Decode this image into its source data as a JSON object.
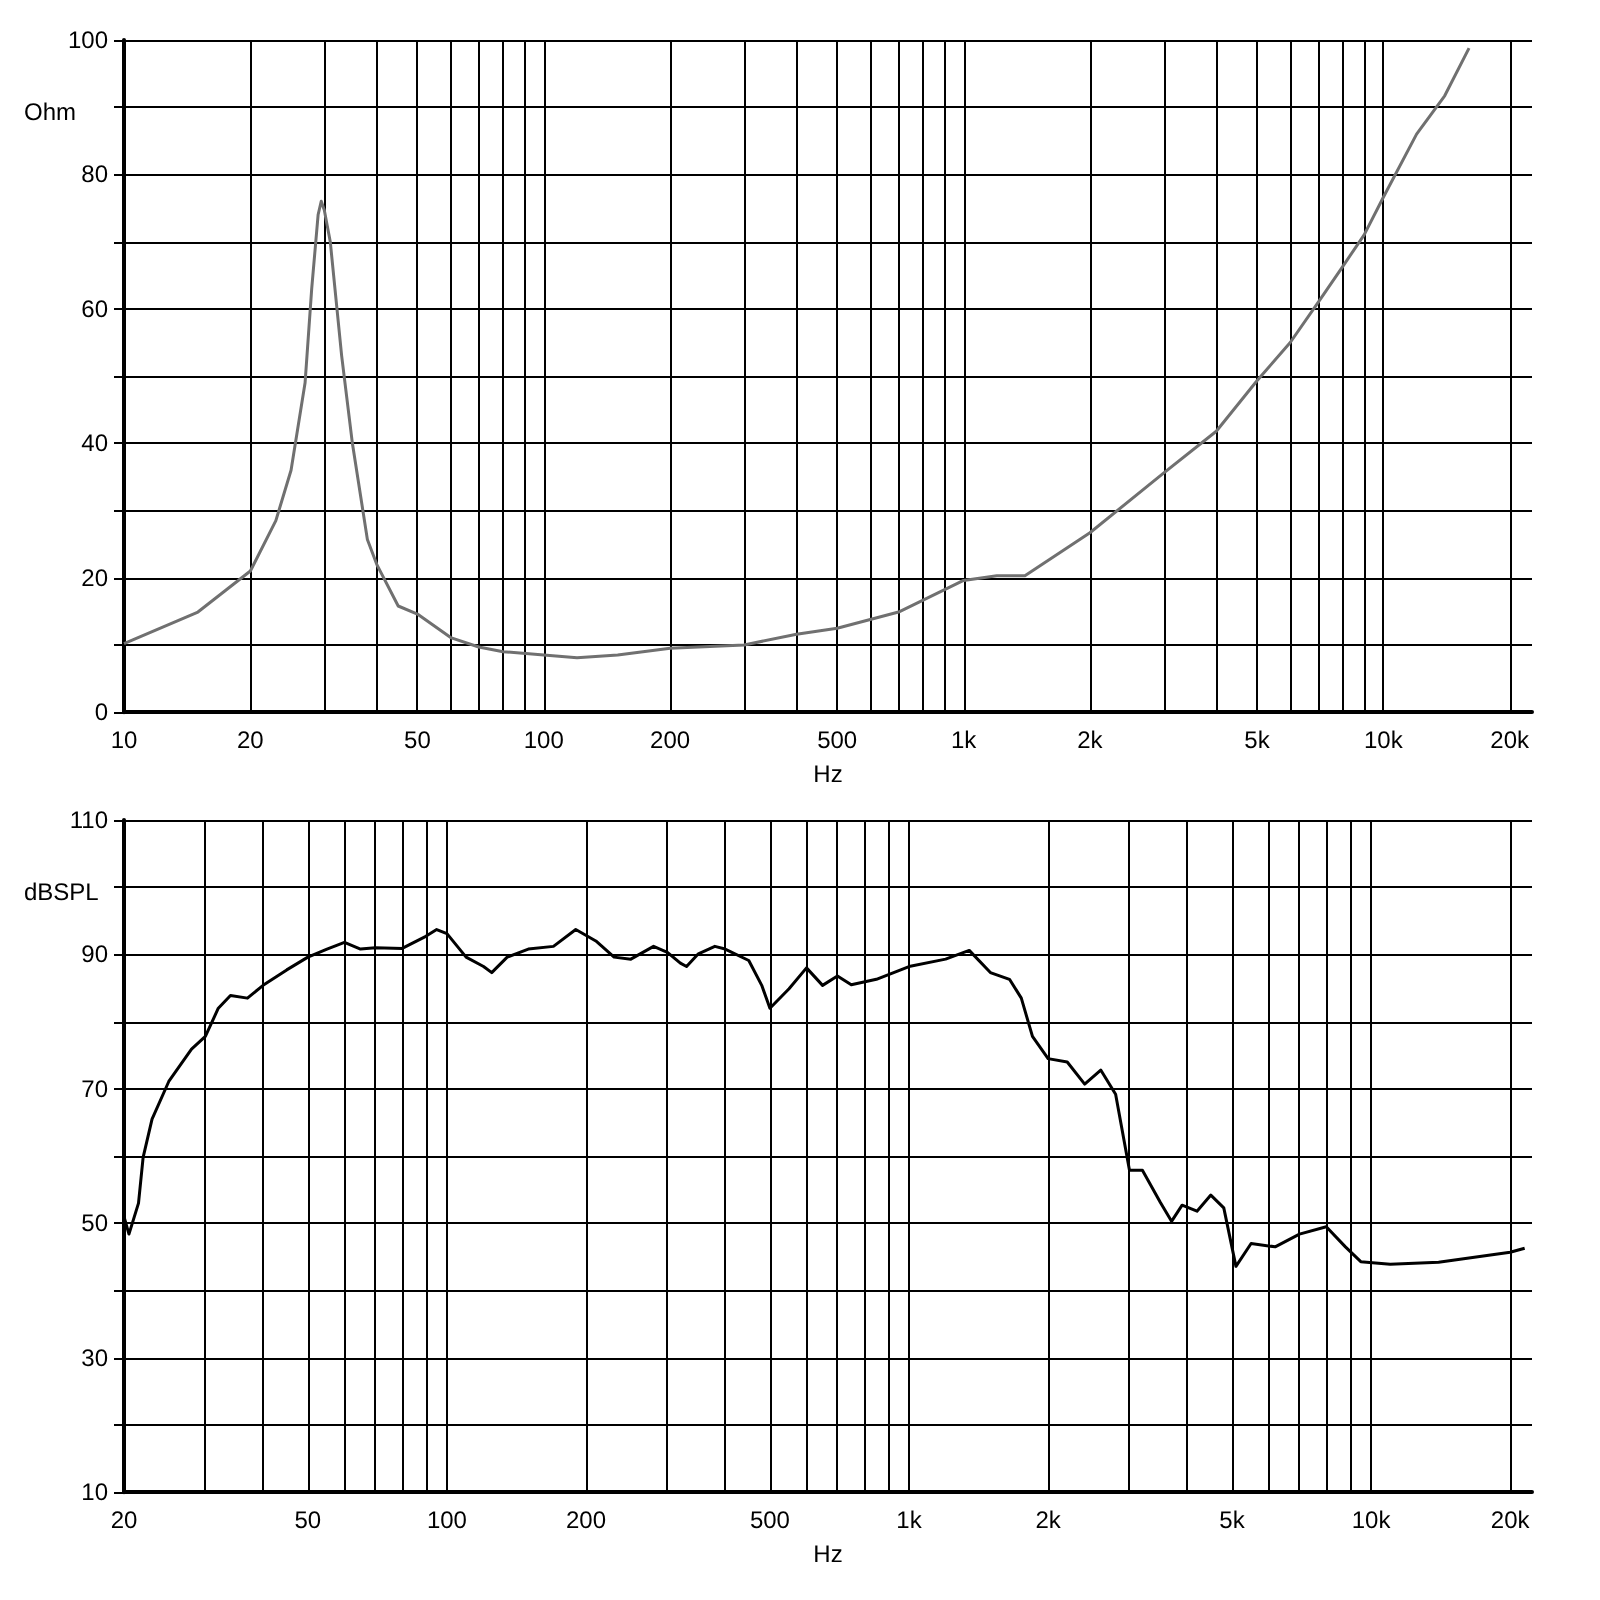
{
  "chart_data": [
    {
      "type": "line",
      "ylabel": "Ohm",
      "xlabel": "Hz",
      "log": "x",
      "grid": true,
      "marker": "none",
      "line_style": "solid",
      "xlim": [
        10,
        22600
      ],
      "ylim": [
        0,
        100
      ],
      "xticks": [
        10,
        20,
        {
          "value": 30,
          "label": null
        },
        {
          "value": 40,
          "label": null
        },
        50,
        {
          "value": 60,
          "label": null
        },
        {
          "value": 70,
          "label": null
        },
        {
          "value": 80,
          "label": null
        },
        {
          "value": 90,
          "label": null
        },
        100,
        200,
        {
          "value": 300,
          "label": null
        },
        {
          "value": 400,
          "label": null
        },
        500,
        {
          "value": 600,
          "label": null
        },
        {
          "value": 700,
          "label": null
        },
        {
          "value": 800,
          "label": null
        },
        {
          "value": 900,
          "label": null
        },
        {
          "value": 1000,
          "label": "1k"
        },
        {
          "value": 2000,
          "label": "2k"
        },
        {
          "value": 3000,
          "label": null
        },
        {
          "value": 4000,
          "label": null
        },
        {
          "value": 5000,
          "label": "5k"
        },
        {
          "value": 6000,
          "label": null
        },
        {
          "value": 7000,
          "label": null
        },
        {
          "value": 8000,
          "label": null
        },
        {
          "value": 9000,
          "label": null
        },
        {
          "value": 10000,
          "label": "10k"
        },
        {
          "value": 20000,
          "label": "20k"
        }
      ],
      "yticks": [
        0,
        {
          "value": 10,
          "label": null
        },
        20,
        {
          "value": 30,
          "label": null
        },
        40,
        {
          "value": 50,
          "label": null
        },
        60,
        {
          "value": 70,
          "label": null
        },
        80,
        {
          "value": 90,
          "label": null
        },
        100
      ],
      "series": [
        {
          "color": "#707070",
          "x": [
            10,
            15,
            20,
            23,
            25,
            27,
            28,
            29,
            29.5,
            30,
            31,
            33,
            35,
            38,
            40,
            45,
            50,
            60,
            70,
            80,
            100,
            120,
            150,
            200,
            300,
            400,
            500,
            700,
            1000,
            1200,
            1400,
            2000,
            3000,
            4000,
            5000,
            6000,
            7000,
            8000,
            9000,
            10000,
            12000,
            14000,
            16000
          ],
          "values": [
            10.2,
            14.9,
            21,
            28.5,
            36,
            49,
            63,
            74,
            76,
            74.7,
            70,
            53,
            40,
            25.7,
            22,
            15.8,
            14.6,
            11.1,
            9.7,
            9,
            8.5,
            8.1,
            8.5,
            9.5,
            10,
            11.6,
            12.5,
            14.9,
            19.6,
            20.3,
            20.3,
            26.7,
            35.6,
            41.8,
            49.3,
            55,
            61,
            66.3,
            71,
            76.6,
            86,
            91.7,
            98.8
          ]
        }
      ]
    },
    {
      "type": "line",
      "ylabel": "dBSPL",
      "xlabel": "Hz",
      "log": "x",
      "grid": true,
      "marker": "none",
      "line_style": "solid",
      "xlim": [
        20,
        22300
      ],
      "ylim": [
        10,
        110
      ],
      "xticks": [
        20,
        {
          "value": 30,
          "label": null
        },
        {
          "value": 40,
          "label": null
        },
        50,
        {
          "value": 60,
          "label": null
        },
        {
          "value": 70,
          "label": null
        },
        {
          "value": 80,
          "label": null
        },
        {
          "value": 90,
          "label": null
        },
        100,
        200,
        {
          "value": 300,
          "label": null
        },
        {
          "value": 400,
          "label": null
        },
        500,
        {
          "value": 600,
          "label": null
        },
        {
          "value": 700,
          "label": null
        },
        {
          "value": 800,
          "label": null
        },
        {
          "value": 900,
          "label": null
        },
        {
          "value": 1000,
          "label": "1k"
        },
        {
          "value": 2000,
          "label": "2k"
        },
        {
          "value": 3000,
          "label": null
        },
        {
          "value": 4000,
          "label": null
        },
        {
          "value": 5000,
          "label": "5k"
        },
        {
          "value": 6000,
          "label": null
        },
        {
          "value": 7000,
          "label": null
        },
        {
          "value": 8000,
          "label": null
        },
        {
          "value": 9000,
          "label": null
        },
        {
          "value": 10000,
          "label": "10k"
        },
        {
          "value": 20000,
          "label": "20k"
        }
      ],
      "yticks": [
        10,
        {
          "value": 20,
          "label": null
        },
        30,
        {
          "value": 40,
          "label": null
        },
        50,
        {
          "value": 60,
          "label": null
        },
        70,
        {
          "value": 80,
          "label": null
        },
        90,
        {
          "value": 100,
          "label": null
        },
        110
      ],
      "series": [
        {
          "color": "#000000",
          "x": [
            20,
            20.5,
            21.5,
            22,
            23,
            25,
            28,
            30,
            32,
            34,
            37,
            40,
            45,
            50,
            55,
            60,
            65,
            70,
            80,
            90,
            95,
            100,
            110,
            120,
            125,
            135,
            150,
            170,
            190,
            210,
            230,
            250,
            280,
            300,
            320,
            330,
            350,
            380,
            400,
            450,
            480,
            500,
            550,
            600,
            650,
            700,
            750,
            850,
            1000,
            1200,
            1350,
            1500,
            1650,
            1750,
            1850,
            2000,
            2200,
            2400,
            2600,
            2800,
            3000,
            3200,
            3500,
            3700,
            3900,
            4200,
            4500,
            4800,
            5100,
            5500,
            6200,
            7000,
            8000,
            8800,
            9500,
            11000,
            14000,
            20000,
            21500
          ],
          "values": [
            51,
            48.4,
            53,
            59.8,
            65.5,
            71.1,
            75.9,
            77.8,
            82,
            83.9,
            83.5,
            85.4,
            87.7,
            89.6,
            90.8,
            91.8,
            90.8,
            91,
            90.9,
            92.7,
            93.7,
            93.1,
            89.6,
            88.2,
            87.3,
            89.6,
            90.8,
            91.2,
            93.7,
            92,
            89.6,
            89.3,
            91.2,
            90.3,
            88.7,
            88.2,
            90.1,
            91.2,
            90.8,
            89.1,
            85.4,
            82,
            84.9,
            88,
            85.4,
            86.8,
            85.5,
            86.3,
            88.2,
            89.3,
            90.6,
            87.3,
            86.3,
            83.5,
            77.8,
            74.5,
            74,
            70.7,
            72.8,
            69.2,
            57.9,
            57.9,
            53.1,
            50.3,
            52.7,
            51.8,
            54.2,
            52.3,
            43.6,
            47,
            46.5,
            48.4,
            49.5,
            46.5,
            44.3,
            43.9,
            44.2,
            45.7,
            46.3
          ]
        }
      ]
    }
  ]
}
